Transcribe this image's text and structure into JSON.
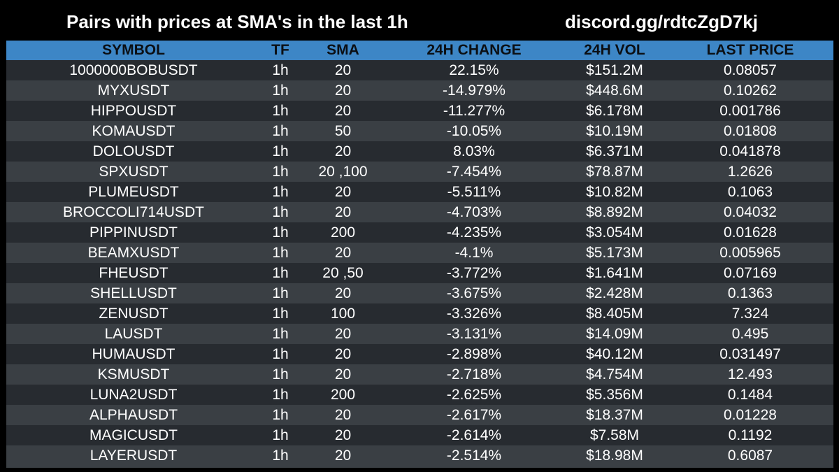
{
  "header": {
    "title": "Pairs with prices at SMA's in the last 1h",
    "discord": "discord.gg/rdtcZgD7kj"
  },
  "table": {
    "columns": [
      "SYMBOL",
      "TF",
      "SMA",
      "24H CHANGE",
      "24H VOL",
      "LAST PRICE"
    ],
    "rows": [
      [
        "1000000BOBUSDT",
        "1h",
        "20",
        "22.15%",
        "$151.2M",
        "0.08057"
      ],
      [
        "MYXUSDT",
        "1h",
        "20",
        "-14.979%",
        "$448.6M",
        "0.10262"
      ],
      [
        "HIPPOUSDT",
        "1h",
        "20",
        "-11.277%",
        "$6.178M",
        "0.001786"
      ],
      [
        "KOMAUSDT",
        "1h",
        "50",
        "-10.05%",
        "$10.19M",
        "0.01808"
      ],
      [
        "DOLOUSDT",
        "1h",
        "20",
        "8.03%",
        "$6.371M",
        "0.041878"
      ],
      [
        "SPXUSDT",
        "1h",
        "20 ,100",
        "-7.454%",
        "$78.87M",
        "1.2626"
      ],
      [
        "PLUMEUSDT",
        "1h",
        "20",
        "-5.511%",
        "$10.82M",
        "0.1063"
      ],
      [
        "BROCCOLI714USDT",
        "1h",
        "20",
        "-4.703%",
        "$8.892M",
        "0.04032"
      ],
      [
        "PIPPINUSDT",
        "1h",
        "200",
        "-4.235%",
        "$3.054M",
        "0.01628"
      ],
      [
        "BEAMXUSDT",
        "1h",
        "20",
        "-4.1%",
        "$5.173M",
        "0.005965"
      ],
      [
        "FHEUSDT",
        "1h",
        "20 ,50",
        "-3.772%",
        "$1.641M",
        "0.07169"
      ],
      [
        "SHELLUSDT",
        "1h",
        "20",
        "-3.675%",
        "$2.428M",
        "0.1363"
      ],
      [
        "ZENUSDT",
        "1h",
        "100",
        "-3.326%",
        "$8.405M",
        "7.324"
      ],
      [
        "LAUSDT",
        "1h",
        "20",
        "-3.131%",
        "$14.09M",
        "0.495"
      ],
      [
        "HUMAUSDT",
        "1h",
        "20",
        "-2.898%",
        "$40.12M",
        "0.031497"
      ],
      [
        "KSMUSDT",
        "1h",
        "20",
        "-2.718%",
        "$4.754M",
        "12.493"
      ],
      [
        "LUNA2USDT",
        "1h",
        "200",
        "-2.625%",
        "$5.356M",
        "0.1484"
      ],
      [
        "ALPHAUSDT",
        "1h",
        "20",
        "-2.617%",
        "$18.37M",
        "0.01228"
      ],
      [
        "MAGICUSDT",
        "1h",
        "20",
        "-2.614%",
        "$7.58M",
        "0.1192"
      ],
      [
        "LAYERUSDT",
        "1h",
        "20",
        "-2.514%",
        "$18.98M",
        "0.6087"
      ]
    ]
  },
  "colors": {
    "background": "#000000",
    "header_row": "#3d86c6",
    "row_dark": "#272b30",
    "row_light": "#3a3f44",
    "text": "#ffffff"
  }
}
